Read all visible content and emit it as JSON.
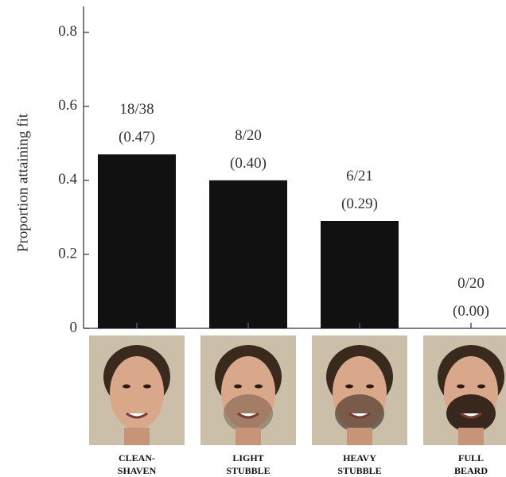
{
  "chart_data": {
    "type": "bar",
    "y_label": "Proportion attaining fit",
    "categories": [
      "CLEAN-\nSHAVEN",
      "LIGHT\nSTUBBLE",
      "HEAVY\nSTUBBLE",
      "FULL\nBEARD"
    ],
    "values": [
      0.47,
      0.4,
      0.29,
      0.0
    ],
    "value_labels": [
      "18/38\n(0.47)",
      "8/20\n(0.40)",
      "6/21\n(0.29)",
      "0/20\n(0.00)"
    ],
    "color": "#111111",
    "ylim": [
      0,
      0.87
    ],
    "yticks": [
      0,
      0.2,
      0.4,
      0.6,
      0.8
    ],
    "grid": false
  }
}
